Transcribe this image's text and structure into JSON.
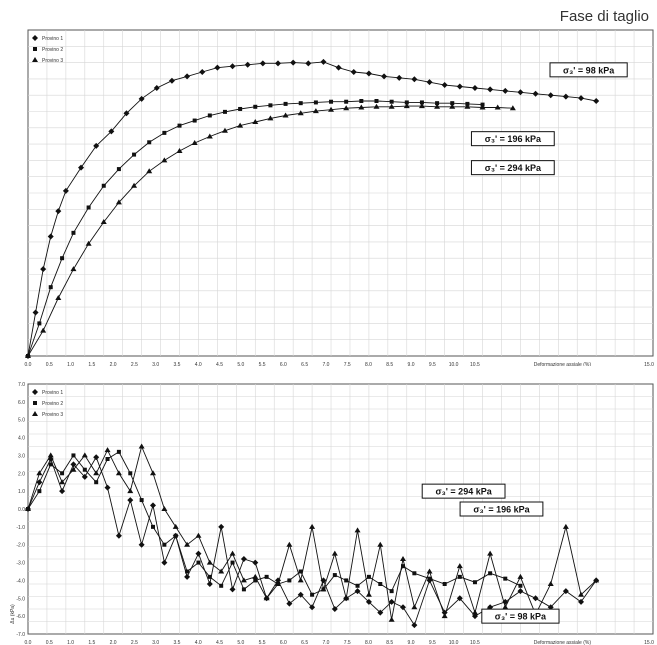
{
  "page": {
    "title": "Fase di taglio"
  },
  "chart_data": [
    {
      "type": "line",
      "title": "",
      "xlabel": "Deformazione assiale (%)",
      "ylabel": "",
      "xlim": [
        0,
        16.5
      ],
      "ylim": [
        0,
        450
      ],
      "grid": true,
      "legend_position": "top-left",
      "x_ticks": [
        "0.0",
        "0.5",
        "1.0",
        "1.5",
        "2.0",
        "2.5",
        "3.0",
        "3.5",
        "4.0",
        "4.5",
        "5.0",
        "5.5",
        "6.0",
        "6.5",
        "7.0",
        "7.5",
        "8.0",
        "8.5",
        "9.0",
        "9.5",
        "10.0",
        "10.5",
        "15.0"
      ],
      "series": [
        {
          "name": "Provino 1",
          "marker": "diamond",
          "x": [
            0,
            0.2,
            0.4,
            0.6,
            0.8,
            1.0,
            1.4,
            1.8,
            2.2,
            2.6,
            3.0,
            3.4,
            3.8,
            4.2,
            4.6,
            5.0,
            5.4,
            5.8,
            6.2,
            6.6,
            7.0,
            7.4,
            7.8,
            8.2,
            8.6,
            9.0,
            9.4,
            9.8,
            10.2,
            10.6,
            11.0,
            11.4,
            11.8,
            12.2,
            12.6,
            13.0,
            13.4,
            13.8,
            14.2,
            14.6,
            15.0
          ],
          "values": [
            0,
            60,
            120,
            165,
            200,
            228,
            260,
            290,
            310,
            335,
            355,
            370,
            380,
            386,
            392,
            398,
            400,
            402,
            404,
            404,
            405,
            404,
            406,
            398,
            392,
            390,
            386,
            384,
            382,
            378,
            374,
            372,
            370,
            368,
            366,
            364,
            362,
            360,
            358,
            356,
            352
          ]
        },
        {
          "name": "Provino 2",
          "marker": "square",
          "x": [
            0,
            0.3,
            0.6,
            0.9,
            1.2,
            1.6,
            2.0,
            2.4,
            2.8,
            3.2,
            3.6,
            4.0,
            4.4,
            4.8,
            5.2,
            5.6,
            6.0,
            6.4,
            6.8,
            7.2,
            7.6,
            8.0,
            8.4,
            8.8,
            9.2,
            9.6,
            10.0,
            10.4,
            10.8,
            11.2,
            11.6,
            12.0
          ],
          "values": [
            0,
            45,
            95,
            135,
            170,
            205,
            235,
            258,
            278,
            295,
            308,
            318,
            325,
            332,
            337,
            341,
            344,
            346,
            348,
            349,
            350,
            351,
            351,
            352,
            352,
            351,
            350,
            350,
            349,
            349,
            348,
            347
          ]
        },
        {
          "name": "Provino 3",
          "marker": "triangle",
          "x": [
            0,
            0.4,
            0.8,
            1.2,
            1.6,
            2.0,
            2.4,
            2.8,
            3.2,
            3.6,
            4.0,
            4.4,
            4.8,
            5.2,
            5.6,
            6.0,
            6.4,
            6.8,
            7.2,
            7.6,
            8.0,
            8.4,
            8.8,
            9.2,
            9.6,
            10.0,
            10.4,
            10.8,
            11.2,
            11.6,
            12.0,
            12.4,
            12.8
          ],
          "values": [
            0,
            35,
            80,
            120,
            155,
            185,
            212,
            235,
            255,
            270,
            283,
            294,
            303,
            311,
            318,
            323,
            328,
            332,
            335,
            338,
            340,
            342,
            343,
            344,
            344,
            345,
            345,
            344,
            344,
            344,
            343,
            343,
            342
          ]
        }
      ],
      "annotations": [
        {
          "text": "σ₃' = 98 kPa",
          "x": 14.8,
          "y": 395
        },
        {
          "text": "σ₃' = 196 kPa",
          "x": 12.8,
          "y": 300
        },
        {
          "text": "σ₃' = 294 kPa",
          "x": 12.8,
          "y": 260
        }
      ]
    },
    {
      "type": "line",
      "title": "",
      "xlabel": "Deformazione assiale (%)",
      "ylabel": "Δu (kPa)",
      "xlim": [
        0,
        16.5
      ],
      "ylim": [
        -7,
        7
      ],
      "grid": true,
      "legend_position": "top-left",
      "x_ticks": [
        "0.0",
        "0.5",
        "1.0",
        "1.5",
        "2.0",
        "2.5",
        "3.0",
        "3.5",
        "4.0",
        "4.5",
        "5.0",
        "5.5",
        "6.0",
        "6.5",
        "7.0",
        "7.5",
        "8.0",
        "8.5",
        "9.0",
        "9.5",
        "10.0",
        "10.5",
        "15.0"
      ],
      "y_ticks": [
        "7.0",
        "6.0",
        "5.0",
        "4.0",
        "3.0",
        "2.0",
        "1.0",
        "0.0",
        "-1.0",
        "-2.0",
        "-3.0",
        "-4.0",
        "-5.0",
        "-6.0",
        "-7.0"
      ],
      "series": [
        {
          "name": "Provino 1",
          "marker": "diamond",
          "x": [
            0,
            0.3,
            0.6,
            0.9,
            1.2,
            1.5,
            1.8,
            2.1,
            2.4,
            2.7,
            3.0,
            3.3,
            3.6,
            3.9,
            4.2,
            4.5,
            4.8,
            5.1,
            5.4,
            5.7,
            6.0,
            6.3,
            6.6,
            6.9,
            7.2,
            7.5,
            7.8,
            8.1,
            8.4,
            8.7,
            9.0,
            9.3,
            9.6,
            9.9,
            10.2,
            10.6,
            11.0,
            11.4,
            11.8,
            12.2,
            12.6,
            13.0,
            13.4,
            13.8,
            14.2,
            14.6,
            15.0
          ],
          "values": [
            0,
            1.5,
            2.8,
            1.0,
            2.5,
            1.8,
            2.9,
            1.2,
            -1.5,
            0.5,
            -2.0,
            0.2,
            -3.0,
            -1.5,
            -3.8,
            -2.5,
            -4.2,
            -1.0,
            -4.5,
            -2.8,
            -3.0,
            -5.0,
            -4.0,
            -5.3,
            -4.8,
            -5.5,
            -4.0,
            -5.6,
            -5.0,
            -4.6,
            -5.2,
            -5.8,
            -5.2,
            -5.5,
            -6.5,
            -4.0,
            -5.8,
            -5.0,
            -6.0,
            -5.5,
            -5.2,
            -4.6,
            -5.0,
            -5.5,
            -4.6,
            -5.2,
            -4.0
          ]
        },
        {
          "name": "Provino 2",
          "marker": "square",
          "x": [
            0,
            0.3,
            0.6,
            0.9,
            1.2,
            1.5,
            1.8,
            2.1,
            2.4,
            2.7,
            3.0,
            3.3,
            3.6,
            3.9,
            4.2,
            4.5,
            4.8,
            5.1,
            5.4,
            5.7,
            6.0,
            6.3,
            6.6,
            6.9,
            7.2,
            7.5,
            7.8,
            8.1,
            8.4,
            8.7,
            9.0,
            9.3,
            9.6,
            9.9,
            10.2,
            10.6,
            11.0,
            11.4,
            11.8,
            12.2,
            12.6,
            13.0
          ],
          "values": [
            0,
            1.0,
            2.5,
            2.0,
            3.0,
            2.2,
            1.5,
            2.8,
            3.2,
            2.0,
            0.5,
            -1.0,
            -2.0,
            -1.5,
            -3.5,
            -3.0,
            -3.8,
            -4.3,
            -3.0,
            -4.5,
            -4.0,
            -3.8,
            -4.2,
            -4.0,
            -3.5,
            -4.8,
            -4.5,
            -3.7,
            -4.0,
            -4.3,
            -3.8,
            -4.2,
            -4.6,
            -3.2,
            -3.6,
            -3.9,
            -4.2,
            -3.8,
            -4.1,
            -3.6,
            -3.9,
            -4.3
          ]
        },
        {
          "name": "Provino 3",
          "marker": "triangle",
          "x": [
            0,
            0.3,
            0.6,
            0.9,
            1.2,
            1.5,
            1.8,
            2.1,
            2.4,
            2.7,
            3.0,
            3.3,
            3.6,
            3.9,
            4.2,
            4.5,
            4.8,
            5.1,
            5.4,
            5.7,
            6.0,
            6.3,
            6.6,
            6.9,
            7.2,
            7.5,
            7.8,
            8.1,
            8.4,
            8.7,
            9.0,
            9.3,
            9.6,
            9.9,
            10.2,
            10.6,
            11.0,
            11.4,
            11.8,
            12.2,
            12.6,
            13.0,
            13.4,
            13.8,
            14.2,
            14.6,
            15.0
          ],
          "values": [
            0,
            2.0,
            3.0,
            1.5,
            2.2,
            3.0,
            2.0,
            3.3,
            2.0,
            1.0,
            3.5,
            2.0,
            0.0,
            -1.0,
            -2.0,
            -1.5,
            -3.0,
            -3.5,
            -2.5,
            -4.0,
            -3.8,
            -5.0,
            -4.2,
            -2.0,
            -4.0,
            -1.0,
            -4.5,
            -2.5,
            -5.0,
            -1.2,
            -4.8,
            -2.0,
            -6.2,
            -2.8,
            -5.5,
            -3.5,
            -6.0,
            -3.2,
            -5.8,
            -2.5,
            -5.5,
            -3.8,
            -5.9,
            -4.2,
            -1.0,
            -4.8,
            -4.0
          ]
        }
      ],
      "annotations": [
        {
          "text": "σ₃' = 294 kPa",
          "x": 11.5,
          "y": 1.0
        },
        {
          "text": "σ₃' = 196 kPa",
          "x": 12.5,
          "y": 0.0
        },
        {
          "text": "σ₃' = 98 kPa",
          "x": 13.0,
          "y": -6.0
        }
      ]
    }
  ]
}
